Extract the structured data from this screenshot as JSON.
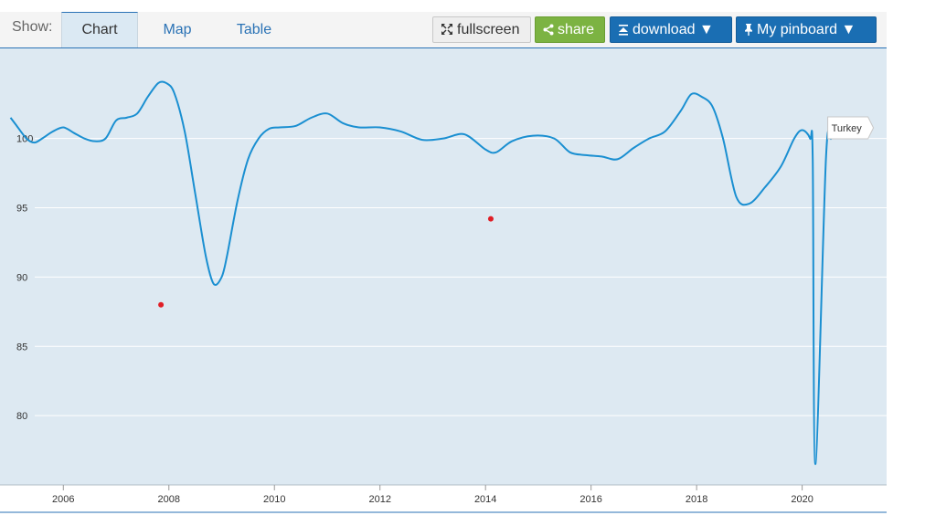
{
  "toolbar": {
    "show_label": "Show:",
    "tabs": [
      {
        "label": "Chart",
        "active": true
      },
      {
        "label": "Map",
        "active": false
      },
      {
        "label": "Table",
        "active": false
      }
    ],
    "fullscreen_label": "fullscreen",
    "share_label": "share",
    "download_label": "download ▼",
    "pinboard_label": "My pinboard ▼"
  },
  "colors": {
    "plot_background": "#dde9f2",
    "line": "#1a8fd1",
    "point": "#e01e26",
    "accent": "#2a72b5",
    "share_green": "#7cb342",
    "download_blue": "#1a6eb3"
  },
  "chart_data": {
    "type": "line",
    "title": "",
    "xlabel": "",
    "ylabel": "",
    "xlim": [
      2004.8,
      2021.6
    ],
    "ylim": [
      75,
      106.5
    ],
    "yticks": [
      80,
      85,
      90,
      95,
      100
    ],
    "xticks": [
      2006,
      2008,
      2010,
      2012,
      2014,
      2016,
      2018,
      2020
    ],
    "grid": true,
    "series": [
      {
        "name": "Turkey",
        "x": [
          2005.0,
          2005.1,
          2005.3,
          2005.45,
          2005.6,
          2005.8,
          2006.0,
          2006.2,
          2006.4,
          2006.6,
          2006.8,
          2007.0,
          2007.2,
          2007.4,
          2007.6,
          2007.8,
          2007.95,
          2008.1,
          2008.3,
          2008.5,
          2008.7,
          2008.85,
          2009.0,
          2009.1,
          2009.3,
          2009.5,
          2009.7,
          2009.9,
          2010.1,
          2010.4,
          2010.7,
          2011.0,
          2011.3,
          2011.6,
          2012.0,
          2012.4,
          2012.8,
          2013.2,
          2013.6,
          2014.0,
          2014.2,
          2014.5,
          2014.9,
          2015.3,
          2015.6,
          2015.9,
          2016.2,
          2016.5,
          2016.8,
          2017.1,
          2017.4,
          2017.7,
          2017.9,
          2018.1,
          2018.3,
          2018.5,
          2018.75,
          2019.0,
          2019.3,
          2019.6,
          2019.85,
          2020.0,
          2020.15,
          2020.2,
          2020.25,
          2020.45,
          2020.55,
          2020.7,
          2021.0,
          2021.3
        ],
        "values": [
          101.5,
          101.0,
          100.0,
          99.7,
          100.0,
          100.5,
          100.8,
          100.4,
          100.0,
          99.8,
          100.0,
          101.3,
          101.5,
          101.8,
          103.0,
          104.0,
          104.0,
          103.3,
          100.5,
          96.0,
          91.5,
          89.5,
          90.0,
          91.5,
          95.5,
          98.5,
          100.0,
          100.7,
          100.8,
          100.9,
          101.5,
          101.8,
          101.1,
          100.8,
          100.8,
          100.5,
          99.9,
          100.0,
          100.3,
          99.2,
          99.0,
          99.8,
          100.2,
          100.0,
          99.0,
          98.8,
          98.7,
          98.5,
          99.3,
          100.0,
          100.5,
          102.0,
          103.2,
          103.0,
          102.3,
          100.0,
          95.8,
          95.3,
          96.5,
          98.0,
          100.0,
          100.6,
          100.0,
          98.5,
          76.5,
          98.5,
          100.0,
          100.7,
          100.8,
          101.0
        ]
      },
      {
        "name": "",
        "type": "scatter",
        "x": [
          2007.85,
          2014.1
        ],
        "values": [
          88.0,
          94.2
        ]
      }
    ],
    "annotations": [
      {
        "text": "Turkey",
        "x": 2020.9,
        "y": 100.7
      }
    ]
  }
}
